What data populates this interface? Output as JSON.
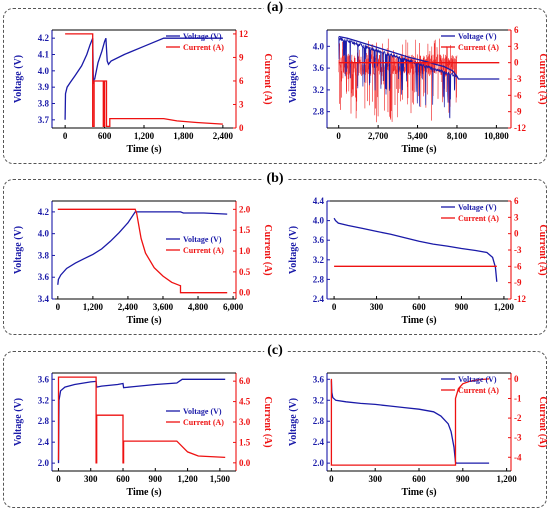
{
  "panels": [
    {
      "label": "(a)"
    },
    {
      "label": "(b)"
    },
    {
      "label": "(c)"
    }
  ],
  "colors": {
    "voltage": "#1a1aa8",
    "current": "#ee1111",
    "axis": "#000000",
    "frame": "#555555"
  },
  "chart_data": [
    {
      "id": "a-left",
      "type": "line",
      "grid": false,
      "legend_position": "top-right",
      "xlabel": "Time (s)",
      "ylabel": "Voltage (V)",
      "y2label": "Current (A)",
      "xlim": [
        -200,
        2600
      ],
      "ylim": [
        3.65,
        4.25
      ],
      "y2lim": [
        0,
        12.5
      ],
      "xticks": [
        0,
        600,
        1200,
        1800,
        2400
      ],
      "xtick_labels": [
        "0",
        "600",
        "1,200",
        "1,800",
        "2,400"
      ],
      "yticks": [
        3.7,
        3.8,
        3.9,
        4.0,
        4.1,
        4.2
      ],
      "ytick_labels": [
        "3.7",
        "3.8",
        "3.9",
        "4.0",
        "4.1",
        "4.2"
      ],
      "y2ticks": [
        0,
        3,
        6,
        9,
        12
      ],
      "y2tick_labels": [
        "0",
        "3",
        "6",
        "9",
        "12"
      ],
      "series": [
        {
          "name": "Voltage (V)",
          "axis": "left",
          "x": [
            0,
            5,
            30,
            80,
            150,
            250,
            330,
            380,
            420,
            430,
            440,
            450,
            500,
            560,
            600,
            620,
            640,
            660,
            700,
            900,
            1200,
            1500,
            1560,
            2000,
            2400
          ],
          "y": [
            3.7,
            3.86,
            3.9,
            3.93,
            3.97,
            4.03,
            4.1,
            4.16,
            4.2,
            3.92,
            3.95,
            3.95,
            4.05,
            4.12,
            4.18,
            4.2,
            4.06,
            4.04,
            4.06,
            4.1,
            4.15,
            4.2,
            4.2,
            4.2,
            4.2
          ]
        },
        {
          "name": "Current (A)",
          "axis": "right",
          "x": [
            0,
            420,
            420,
            440,
            440,
            580,
            580,
            600,
            600,
            630,
            630,
            680,
            680,
            1200,
            1500,
            1700,
            2000,
            2400
          ],
          "y": [
            12,
            12,
            0.2,
            0.2,
            6,
            6,
            0.2,
            0.2,
            6,
            6,
            0.2,
            0.2,
            1.2,
            1.2,
            1.2,
            0.9,
            0.7,
            0.5
          ]
        }
      ]
    },
    {
      "id": "a-right",
      "type": "line",
      "grid": false,
      "legend_position": "top-right",
      "xlabel": "Time (s)",
      "ylabel": "Voltage (V)",
      "y2label": "Current (A)",
      "xlim": [
        -800,
        11800
      ],
      "ylim": [
        2.5,
        4.3
      ],
      "y2lim": [
        -12,
        6
      ],
      "xticks": [
        0,
        2700,
        5400,
        8100,
        10800
      ],
      "xtick_labels": [
        "0",
        "2,700",
        "5,400",
        "8,100",
        "10,800"
      ],
      "yticks": [
        2.8,
        3.2,
        3.6,
        4.0
      ],
      "ytick_labels": [
        "2.8",
        "3.2",
        "3.6",
        "4.0"
      ],
      "y2ticks": [
        -12,
        -9,
        -6,
        -3,
        0,
        3,
        6
      ],
      "y2tick_labels": [
        "-12",
        "-9",
        "-6",
        "-3",
        "0",
        "3",
        "6"
      ],
      "series": [
        {
          "name": "Voltage (V)",
          "axis": "left",
          "x": [
            0,
            600,
            1200,
            1800,
            2400,
            3000,
            3600,
            4200,
            4800,
            5400,
            6000,
            6600,
            7200,
            7800,
            8100,
            8200,
            9000,
            10000,
            11000
          ],
          "y": [
            4.18,
            4.15,
            4.1,
            4.05,
            4.0,
            3.95,
            3.9,
            3.85,
            3.8,
            3.76,
            3.72,
            3.67,
            3.63,
            3.55,
            3.45,
            3.4,
            3.4,
            3.4,
            3.4
          ]
        },
        {
          "name": "Current (A)",
          "axis": "right",
          "x": [
            0,
            8100,
            8150,
            11000
          ],
          "y": [
            0,
            0,
            0,
            0
          ]
        }
      ]
    },
    {
      "id": "b-left",
      "type": "line",
      "grid": false,
      "legend_position": "right",
      "xlabel": "Time (s)",
      "ylabel": "Voltage (V)",
      "y2label": "Current (A)",
      "xlim": [
        -200,
        6100
      ],
      "ylim": [
        3.4,
        4.3
      ],
      "y2lim": [
        -0.15,
        2.2
      ],
      "xticks": [
        0,
        1200,
        2400,
        3600,
        4800,
        6000
      ],
      "xtick_labels": [
        "0",
        "1,200",
        "2,400",
        "3,600",
        "4,800",
        "6,000"
      ],
      "yticks": [
        3.4,
        3.6,
        3.8,
        4.0,
        4.2
      ],
      "ytick_labels": [
        "3.4",
        "3.6",
        "3.8",
        "4.0",
        "4.2"
      ],
      "y2ticks": [
        0,
        0.5,
        1.0,
        1.5,
        2.0
      ],
      "y2tick_labels": [
        "0.0",
        "0.5",
        "1.0",
        "1.5",
        "2.0"
      ],
      "series": [
        {
          "name": "Voltage (V)",
          "axis": "left",
          "x": [
            0,
            20,
            100,
            300,
            600,
            900,
            1200,
            1500,
            1800,
            2100,
            2400,
            2650,
            2700,
            3600,
            4200,
            4300,
            5000,
            5800
          ],
          "y": [
            3.53,
            3.58,
            3.62,
            3.68,
            3.73,
            3.77,
            3.81,
            3.86,
            3.93,
            4.01,
            4.1,
            4.2,
            4.2,
            4.2,
            4.2,
            4.19,
            4.19,
            4.18
          ]
        },
        {
          "name": "Current (A)",
          "axis": "right",
          "x": [
            0,
            2650,
            2700,
            2850,
            3000,
            3300,
            3600,
            3900,
            4150,
            4200,
            4200,
            5800
          ],
          "y": [
            2.0,
            2.0,
            1.9,
            1.3,
            0.95,
            0.6,
            0.4,
            0.25,
            0.18,
            0.17,
            0.0,
            0.0
          ]
        }
      ]
    },
    {
      "id": "b-right",
      "type": "line",
      "grid": false,
      "legend_position": "top-right",
      "xlabel": "Time (s)",
      "ylabel": "Voltage (V)",
      "y2label": "Current (A)",
      "xlim": [
        -50,
        1250
      ],
      "ylim": [
        2.4,
        4.4
      ],
      "y2lim": [
        -12,
        6
      ],
      "xticks": [
        0,
        300,
        600,
        900,
        1200
      ],
      "xtick_labels": [
        "0",
        "300",
        "600",
        "900",
        "1,200"
      ],
      "yticks": [
        2.4,
        2.8,
        3.2,
        3.6,
        4.0,
        4.4
      ],
      "ytick_labels": [
        "2.4",
        "2.8",
        "3.2",
        "3.6",
        "4.0",
        "4.4"
      ],
      "y2ticks": [
        -12,
        -9,
        -6,
        -3,
        0,
        3,
        6
      ],
      "y2tick_labels": [
        "-12",
        "-9",
        "-6",
        "-3",
        "0",
        "3",
        "6"
      ],
      "series": [
        {
          "name": "Voltage (V)",
          "axis": "left",
          "x": [
            0,
            10,
            30,
            100,
            200,
            300,
            400,
            500,
            600,
            700,
            800,
            900,
            1000,
            1080,
            1120,
            1140,
            1150
          ],
          "y": [
            4.05,
            4.0,
            3.95,
            3.9,
            3.84,
            3.78,
            3.72,
            3.65,
            3.58,
            3.52,
            3.48,
            3.43,
            3.39,
            3.35,
            3.25,
            3.05,
            2.75
          ]
        },
        {
          "name": "Current (A)",
          "axis": "right",
          "x": [
            0,
            1150
          ],
          "y": [
            -6,
            -6
          ]
        }
      ]
    },
    {
      "id": "c-left",
      "type": "line",
      "grid": false,
      "legend_position": "right",
      "xlabel": "Time (s)",
      "ylabel": "Voltage (V)",
      "y2label": "Current (A)",
      "xlim": [
        -60,
        1650
      ],
      "ylim": [
        1.85,
        3.72
      ],
      "y2lim": [
        -0.6,
        6.6
      ],
      "xticks": [
        0,
        300,
        600,
        900,
        1200,
        1500
      ],
      "xtick_labels": [
        "0",
        "300",
        "600",
        "900",
        "1,200",
        "1,500"
      ],
      "yticks": [
        2.0,
        2.4,
        2.8,
        3.2,
        3.6
      ],
      "ytick_labels": [
        "2.0",
        "2.4",
        "2.8",
        "3.2",
        "3.6"
      ],
      "y2ticks": [
        0,
        1.5,
        3.0,
        4.5,
        6.0
      ],
      "y2tick_labels": [
        "0.0",
        "1.5",
        "3.0",
        "4.5",
        "6.0"
      ],
      "series": [
        {
          "name": "Voltage (V)",
          "axis": "left",
          "x": [
            0,
            5,
            20,
            60,
            150,
            300,
            350,
            355,
            400,
            550,
            600,
            605,
            700,
            900,
            1100,
            1150,
            1200,
            1550
          ],
          "y": [
            2.0,
            3.2,
            3.38,
            3.45,
            3.5,
            3.55,
            3.56,
            3.45,
            3.47,
            3.5,
            3.52,
            3.44,
            3.46,
            3.5,
            3.53,
            3.6,
            3.6,
            3.6
          ]
        },
        {
          "name": "Current (A)",
          "axis": "right",
          "x": [
            0,
            0,
            350,
            350,
            355,
            355,
            600,
            600,
            605,
            605,
            1100,
            1200,
            1300,
            1550
          ],
          "y": [
            0.2,
            6.3,
            6.3,
            0.0,
            0.0,
            3.5,
            3.5,
            0.0,
            0.0,
            1.6,
            1.6,
            0.8,
            0.5,
            0.4
          ]
        }
      ]
    },
    {
      "id": "c-right",
      "type": "line",
      "grid": false,
      "legend_position": "top-right",
      "xlabel": "Time (s)",
      "ylabel": "Voltage (V)",
      "y2label": "Current (A)",
      "xlim": [
        -30,
        1230
      ],
      "ylim": [
        1.85,
        3.72
      ],
      "y2lim": [
        -4.7,
        0.3
      ],
      "xticks": [
        0,
        300,
        600,
        900,
        1200
      ],
      "xtick_labels": [
        "0",
        "300",
        "600",
        "900",
        "1,200"
      ],
      "yticks": [
        2.0,
        2.4,
        2.8,
        3.2,
        3.6
      ],
      "ytick_labels": [
        "2.0",
        "2.4",
        "2.8",
        "3.2",
        "3.6"
      ],
      "y2ticks": [
        -4,
        -3,
        -2,
        -1,
        0
      ],
      "y2tick_labels": [
        "-4",
        "-3",
        "-2",
        "-1",
        "0"
      ],
      "series": [
        {
          "name": "Voltage (V)",
          "axis": "left",
          "x": [
            0,
            3,
            10,
            30,
            100,
            200,
            300,
            400,
            500,
            600,
            700,
            750,
            800,
            820,
            840,
            850,
            855,
            900,
            1080
          ],
          "y": [
            3.58,
            3.35,
            3.25,
            3.2,
            3.17,
            3.14,
            3.12,
            3.09,
            3.06,
            3.03,
            2.98,
            2.9,
            2.75,
            2.6,
            2.3,
            2.02,
            2.0,
            2.0,
            2.0
          ]
        },
        {
          "name": "Current (A)",
          "axis": "right",
          "x": [
            0,
            0,
            850,
            850,
            870,
            900,
            950,
            1000,
            1080
          ],
          "y": [
            0.0,
            -4.4,
            -4.4,
            -1.0,
            -0.5,
            -0.25,
            -0.12,
            -0.05,
            0.0
          ]
        }
      ]
    }
  ]
}
